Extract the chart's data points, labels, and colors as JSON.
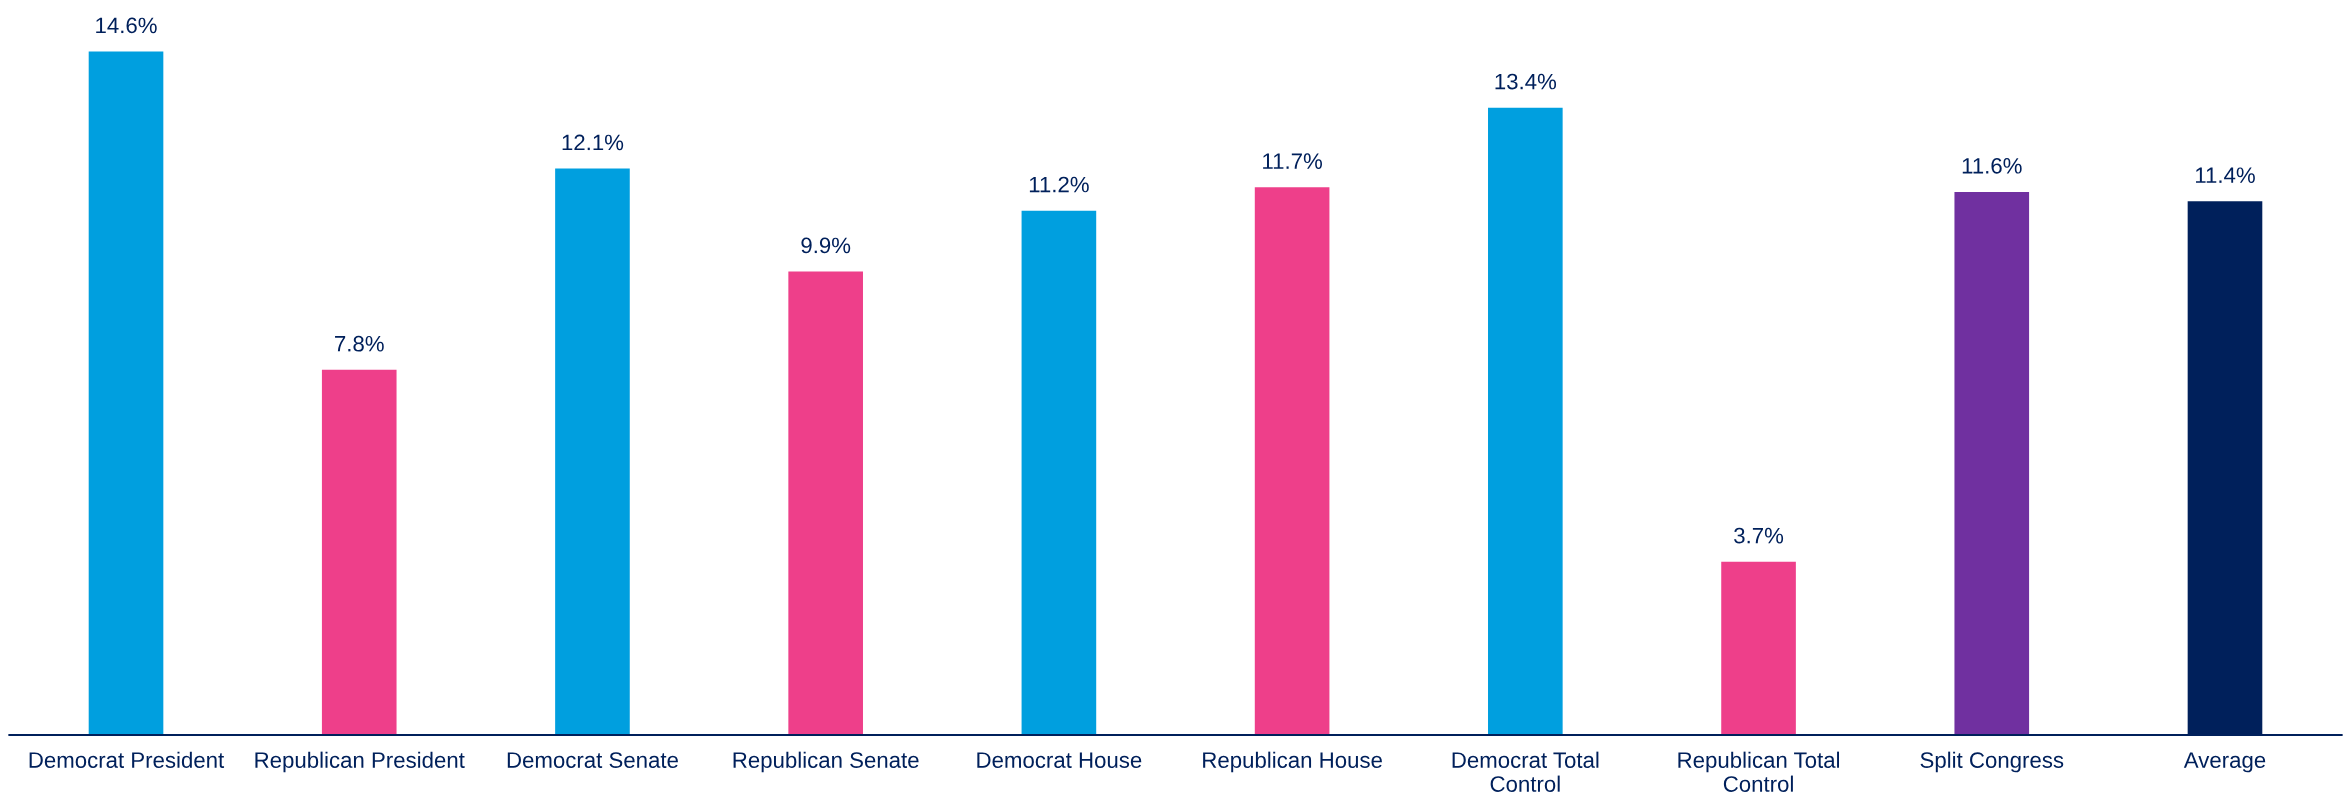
{
  "chart_data": {
    "type": "bar",
    "categories": [
      "Democrat President",
      "Republican President",
      "Democrat Senate",
      "Republican Senate",
      "Democrat House",
      "Republican House",
      "Democrat Total Control",
      "Republican Total Control",
      "Split Congress",
      "Average"
    ],
    "values": [
      14.6,
      7.8,
      12.1,
      9.9,
      11.2,
      11.7,
      13.4,
      3.7,
      11.6,
      11.4
    ],
    "colors": [
      "#009fdf",
      "#ee3f8a",
      "#009fdf",
      "#ee3f8a",
      "#009fdf",
      "#ee3f8a",
      "#009fdf",
      "#ee3f8a",
      "#7030a0",
      "#00205b"
    ],
    "value_labels": [
      "14.6%",
      "7.8%",
      "12.1%",
      "9.9%",
      "11.2%",
      "11.7%",
      "13.4%",
      "3.7%",
      "11.6%",
      "11.4%"
    ],
    "grid": false,
    "legend": false
  }
}
